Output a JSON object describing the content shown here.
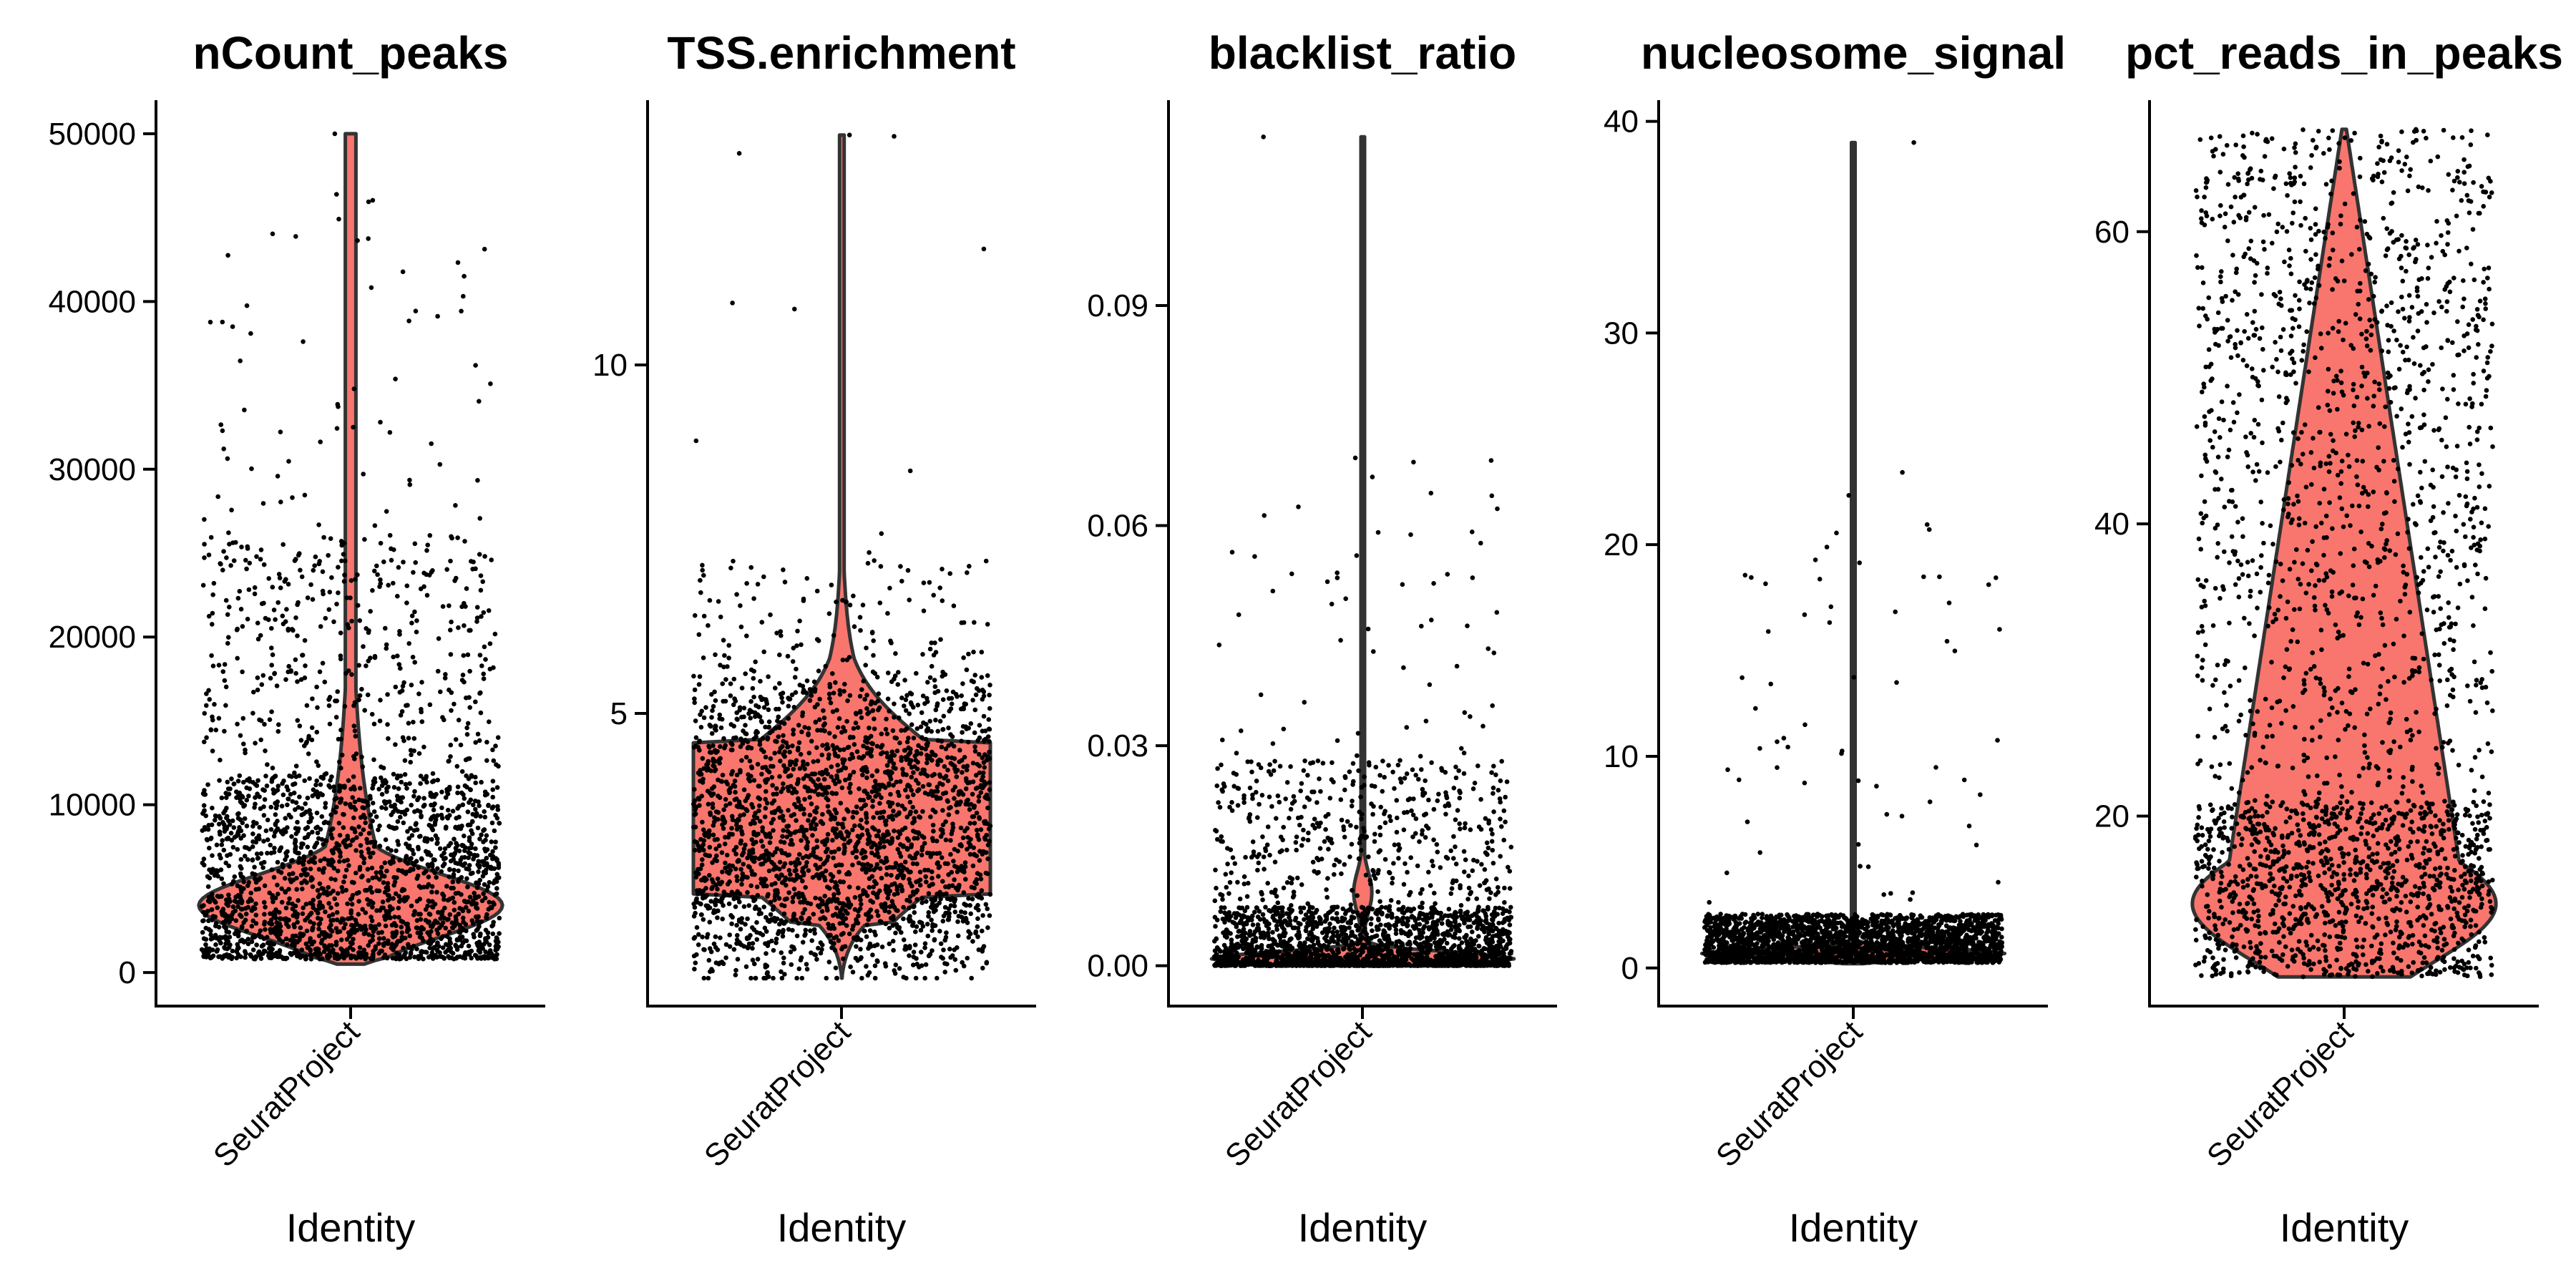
{
  "chart_data": [
    {
      "type": "violin",
      "title": "nCount_peaks",
      "categories": [
        "SeuratProject"
      ],
      "xlabel": "Identity",
      "ylabel": "",
      "ylim": [
        -2000,
        52000
      ],
      "yticks": [
        0,
        10000,
        20000,
        30000,
        40000,
        50000
      ],
      "fill_color": "#F8766D",
      "outline_color": "#333333",
      "point_color": "#000000",
      "distribution": {
        "min": 500,
        "max": 50000,
        "mode": 4000,
        "median": 5000,
        "q1": 3000,
        "q3": 8000,
        "skew": "right",
        "shape": "long upper tail"
      },
      "points": {
        "count": 2500,
        "lower_dense": [
          500,
          15000
        ],
        "sparse_outliers_up_to": 50000
      }
    },
    {
      "type": "violin",
      "title": "TSS.enrichment",
      "categories": [
        "SeuratProject"
      ],
      "xlabel": "Identity",
      "ylabel": "",
      "ylim": [
        0.8,
        13.8
      ],
      "yticks": [
        5,
        10
      ],
      "fill_color": "#F8766D",
      "outline_color": "#333333",
      "point_color": "#000000",
      "distribution": {
        "min": 1.2,
        "max": 13.3,
        "mode": 3.5,
        "median": 3.6,
        "q1": 2.8,
        "q3": 4.4,
        "skew": "right",
        "shape": "bulb around 2-6"
      },
      "points": {
        "count": 2500,
        "lower_dense": [
          1.5,
          6.5
        ],
        "sparse_outliers_up_to": 13.3
      }
    },
    {
      "type": "violin",
      "title": "blacklist_ratio",
      "categories": [
        "SeuratProject"
      ],
      "xlabel": "Identity",
      "ylabel": "",
      "ylim": [
        -0.0055,
        0.118
      ],
      "yticks": [
        0.0,
        0.03,
        0.06,
        0.09
      ],
      "ytick_labels": [
        "0.00",
        "0.03",
        "0.06",
        "0.09"
      ],
      "fill_color": "#F8766D",
      "outline_color": "#333333",
      "point_color": "#000000",
      "distribution": {
        "min": 0.0,
        "max": 0.113,
        "mode": 0.001,
        "median": 0.002,
        "q1": 0.0005,
        "q3": 0.005,
        "skew": "right",
        "shape": "flat base with thin spike"
      },
      "points": {
        "count": 2500,
        "lower_dense": [
          0.0,
          0.025
        ],
        "sparse_outliers_up_to": 0.113
      }
    },
    {
      "type": "violin",
      "title": "nucleosome_signal",
      "categories": [
        "SeuratProject"
      ],
      "xlabel": "Identity",
      "ylabel": "",
      "ylim": [
        -1.8,
        41
      ],
      "yticks": [
        0,
        10,
        20,
        30,
        40
      ],
      "fill_color": "#F8766D",
      "outline_color": "#333333",
      "point_color": "#000000",
      "distribution": {
        "min": 0.2,
        "max": 39,
        "mode": 0.7,
        "median": 0.8,
        "q1": 0.6,
        "q3": 1.1,
        "skew": "right",
        "shape": "flat base with thin spike"
      },
      "points": {
        "count": 2500,
        "lower_dense": [
          0.2,
          2.5
        ],
        "sparse_outliers_up_to": 39
      }
    },
    {
      "type": "violin",
      "title": "pct_reads_in_peaks",
      "categories": [
        "SeuratProject"
      ],
      "xlabel": "Identity",
      "ylabel": "",
      "ylim": [
        7,
        69
      ],
      "yticks": [
        20,
        40,
        60
      ],
      "fill_color": "#F8766D",
      "outline_color": "#333333",
      "point_color": "#000000",
      "distribution": {
        "min": 9,
        "max": 67,
        "mode": 14,
        "median": 28,
        "q1": 17,
        "q3": 42,
        "skew": "right",
        "shape": "wide base tapering to top"
      },
      "points": {
        "count": 2500,
        "lower_dense": [
          9,
          67
        ],
        "sparse_outliers_up_to": 67
      }
    }
  ]
}
